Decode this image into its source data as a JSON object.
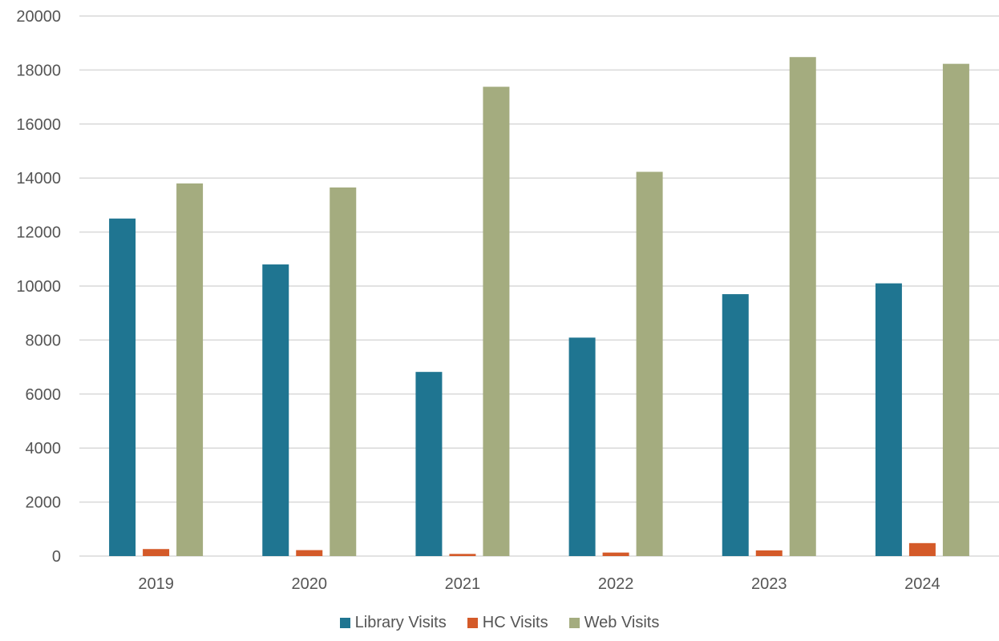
{
  "chart_data": {
    "type": "bar",
    "categories": [
      "2019",
      "2020",
      "2021",
      "2022",
      "2023",
      "2024"
    ],
    "series": [
      {
        "name": "Library Visits",
        "color": "#1f7591",
        "values": [
          12500,
          10800,
          6820,
          8090,
          9700,
          10100
        ]
      },
      {
        "name": "HC Visits",
        "color": "#d45a29",
        "values": [
          260,
          220,
          80,
          130,
          210,
          480
        ]
      },
      {
        "name": "Web Visits",
        "color": "#a4ac7f",
        "values": [
          13800,
          13650,
          17380,
          14230,
          18480,
          18230
        ]
      }
    ],
    "ylim": [
      0,
      20000
    ],
    "yticks": [
      "0",
      "2000",
      "4000",
      "6000",
      "8000",
      "10000",
      "12000",
      "14000",
      "16000",
      "18000",
      "20000"
    ],
    "grid": true,
    "legend_position": "bottom",
    "gridline_color": "#d9d9d9"
  }
}
